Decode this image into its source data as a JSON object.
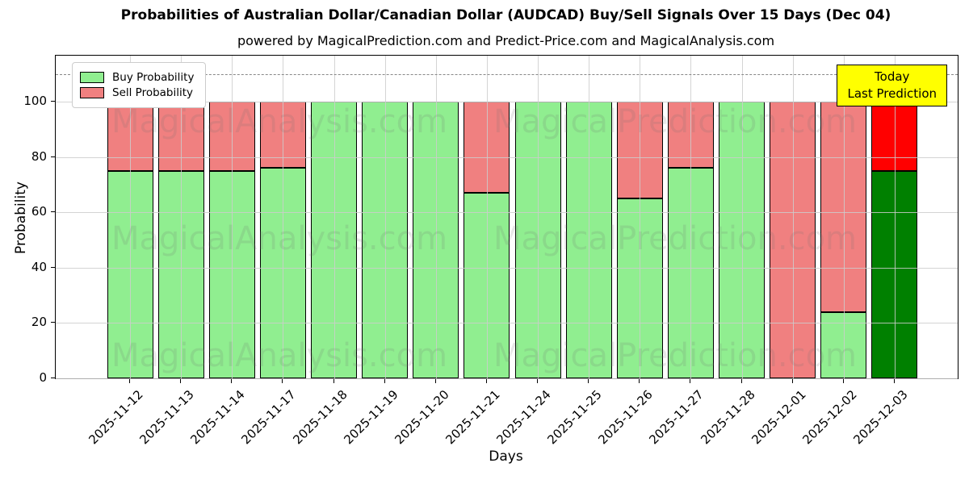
{
  "header": {
    "title": "Probabilities of Australian Dollar/Canadian Dollar (AUDCAD) Buy/Sell Signals Over 15 Days (Dec 04)",
    "subtitle": "powered by MagicalPrediction.com and Predict-Price.com and MagicalAnalysis.com"
  },
  "legend": {
    "buy_label": "Buy Probability",
    "sell_label": "Sell Probability"
  },
  "annotation": {
    "line1": "Today",
    "line2": "Last Prediction"
  },
  "watermarks": {
    "left_text": "MagicalAnalysis.com",
    "right_text": "MagicalPrediction.com"
  },
  "colors": {
    "buy": "#90EE90",
    "sell": "#F08080",
    "today_buy": "#008000",
    "today_sell": "#FF0000",
    "annotation_bg": "#FFFF00",
    "gridline": "#CCCCCC",
    "dashed_line": "#878787"
  },
  "chart_data": {
    "type": "bar",
    "stacked": true,
    "title": "Probabilities of Australian Dollar/Canadian Dollar (AUDCAD) Buy/Sell Signals Over 15 Days (Dec 04)",
    "xlabel": "Days",
    "ylabel": "Probability",
    "ylim": [
      0,
      116.6
    ],
    "yticks": [
      0,
      20,
      40,
      60,
      80,
      100
    ],
    "dashed_line_y": 110,
    "grid": true,
    "legend_position": "upper left",
    "categories": [
      "2025-11-12",
      "2025-11-13",
      "2025-11-14",
      "2025-11-17",
      "2025-11-18",
      "2025-11-19",
      "2025-11-20",
      "2025-11-21",
      "2025-11-24",
      "2025-11-25",
      "2025-11-26",
      "2025-11-27",
      "2025-11-28",
      "2025-12-01",
      "2025-12-02",
      "2025-12-03"
    ],
    "series": [
      {
        "name": "Buy Probability",
        "values": [
          75,
          75,
          75,
          76,
          100,
          100,
          100,
          67,
          100,
          100,
          65,
          76,
          100,
          0,
          24,
          75
        ]
      },
      {
        "name": "Sell Probability",
        "values": [
          25,
          25,
          25,
          24,
          0,
          0,
          0,
          33,
          0,
          0,
          35,
          24,
          0,
          100,
          76,
          25
        ]
      }
    ],
    "today_index": 15
  }
}
